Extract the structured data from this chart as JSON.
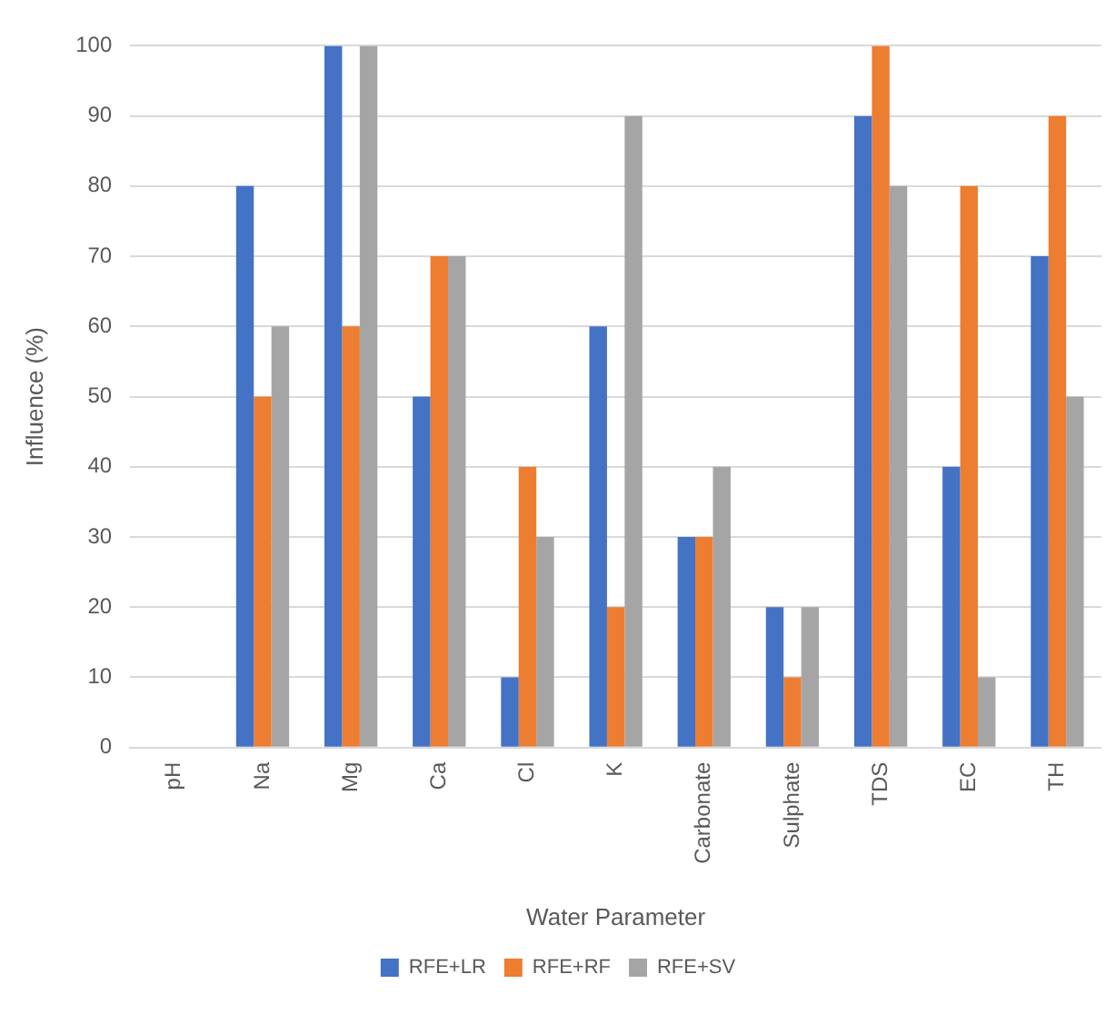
{
  "chart_data": {
    "type": "bar",
    "xlabel": "Water Parameter",
    "ylabel": "Influence (%)",
    "categories": [
      "pH",
      "Na",
      "Mg",
      "Ca",
      "Cl",
      "K",
      "Carbonate",
      "Sulphate",
      "TDS",
      "EC",
      "TH"
    ],
    "series": [
      {
        "name": "RFE+LR",
        "color": "#4472c4",
        "values": [
          0,
          80,
          100,
          50,
          10,
          60,
          30,
          20,
          90,
          40,
          70
        ]
      },
      {
        "name": "RFE+RF",
        "color": "#ed7d31",
        "values": [
          0,
          50,
          60,
          70,
          40,
          20,
          30,
          10,
          100,
          80,
          90
        ]
      },
      {
        "name": "RFE+SV",
        "color": "#a5a5a5",
        "values": [
          0,
          60,
          100,
          70,
          30,
          90,
          40,
          20,
          80,
          10,
          50
        ]
      }
    ],
    "ylim": [
      0,
      100
    ],
    "yticks": [
      0,
      10,
      20,
      30,
      40,
      50,
      60,
      70,
      80,
      90,
      100
    ],
    "grid": "y",
    "legend": "bottom"
  }
}
